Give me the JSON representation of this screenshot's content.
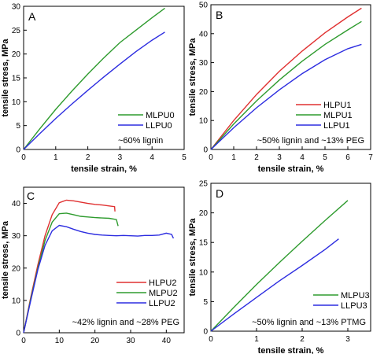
{
  "chart_data": [
    {
      "panel": "A",
      "type": "line",
      "xlabel": "tensile strain, %",
      "ylabel": "tensile stress, MPa",
      "xlim": [
        0,
        5
      ],
      "ylim": [
        0,
        30
      ],
      "xticks": [
        0,
        1,
        2,
        3,
        4,
        5
      ],
      "yticks": [
        0,
        5,
        10,
        15,
        20,
        25,
        30
      ],
      "legend_position": "bottom-right",
      "annotation": "~60% lignin",
      "series": [
        {
          "name": "MLPU0",
          "color": "#2e9b2e",
          "x": [
            0,
            0.5,
            1.0,
            1.5,
            2.0,
            2.5,
            3.0,
            3.5,
            4.0,
            4.4
          ],
          "y": [
            0,
            4.3,
            8.4,
            12.2,
            15.8,
            19.2,
            22.4,
            25.0,
            27.6,
            29.6
          ]
        },
        {
          "name": "LLPU0",
          "color": "#2d2de0",
          "x": [
            0,
            0.5,
            1.0,
            1.5,
            2.0,
            2.5,
            3.0,
            3.5,
            4.0,
            4.4
          ],
          "y": [
            0,
            3.3,
            6.5,
            9.5,
            12.4,
            15.2,
            17.9,
            20.5,
            22.9,
            24.6
          ]
        }
      ]
    },
    {
      "panel": "B",
      "type": "line",
      "xlabel": "tensile strain, %",
      "ylabel": "tensile stress, MPa",
      "xlim": [
        0,
        7
      ],
      "ylim": [
        0,
        50
      ],
      "xticks": [
        0,
        1,
        2,
        3,
        4,
        5,
        6,
        7
      ],
      "yticks": [
        0,
        10,
        20,
        30,
        40,
        50
      ],
      "legend_position": "bottom-right",
      "annotation": "~50% lignin and ~13% PEG",
      "series": [
        {
          "name": "HLPU1",
          "color": "#e03030",
          "x": [
            0,
            1,
            2,
            3,
            4,
            5,
            6,
            6.6
          ],
          "y": [
            0,
            10.0,
            19.0,
            27.0,
            34.0,
            40.3,
            45.8,
            48.8
          ]
        },
        {
          "name": "MLPU1",
          "color": "#2e9b2e",
          "x": [
            0,
            1,
            2,
            3,
            4,
            5,
            6,
            6.6
          ],
          "y": [
            0,
            8.8,
            16.8,
            24.0,
            30.5,
            36.3,
            41.3,
            44.2
          ]
        },
        {
          "name": "LLPU1",
          "color": "#2d2de0",
          "x": [
            0,
            1,
            2,
            3,
            4,
            5,
            6,
            6.6
          ],
          "y": [
            0,
            7.5,
            14.4,
            20.6,
            26.2,
            31.0,
            34.8,
            36.3
          ]
        }
      ]
    },
    {
      "panel": "C",
      "type": "line",
      "xlabel": "",
      "ylabel": "tensile stress, MPa",
      "xlim": [
        0,
        45
      ],
      "ylim": [
        0,
        45
      ],
      "xticks": [
        0,
        10,
        20,
        30,
        40
      ],
      "yticks": [
        0,
        10,
        20,
        30,
        40
      ],
      "legend_position": "bottom-right",
      "annotation": "~42% lignin and ~28% PEG",
      "series": [
        {
          "name": "HLPU2",
          "color": "#e03030",
          "x": [
            0,
            2,
            4,
            6,
            8,
            10,
            12,
            14,
            16,
            18,
            20,
            22,
            24,
            25.5,
            25.6
          ],
          "y": [
            0,
            11.0,
            21.0,
            30.0,
            36.5,
            40.2,
            41.0,
            40.8,
            40.4,
            40.0,
            39.7,
            39.5,
            39.2,
            39.0,
            37.5
          ]
        },
        {
          "name": "MLPU2",
          "color": "#2e9b2e",
          "x": [
            0,
            2,
            4,
            6,
            8,
            10,
            12,
            14,
            16,
            18,
            20,
            22,
            24,
            26,
            26.5
          ],
          "y": [
            0,
            10.5,
            20.0,
            28.5,
            34.2,
            36.8,
            37.0,
            36.5,
            36.0,
            35.8,
            35.6,
            35.5,
            35.4,
            35.0,
            33.0
          ]
        },
        {
          "name": "LLPU2",
          "color": "#2d2de0",
          "x": [
            0,
            2,
            4,
            6,
            8,
            10,
            12,
            14,
            16,
            18,
            20,
            22,
            24,
            26,
            28,
            30,
            32,
            34,
            36,
            38,
            40,
            41.5,
            42
          ],
          "y": [
            0,
            10.0,
            19.5,
            27.0,
            31.5,
            33.2,
            32.8,
            32.0,
            31.3,
            30.8,
            30.4,
            30.2,
            30.1,
            30.0,
            30.1,
            30.0,
            29.9,
            30.1,
            30.1,
            30.2,
            30.8,
            30.4,
            29.2
          ]
        }
      ]
    },
    {
      "panel": "D",
      "type": "line",
      "xlabel": "tensile strain, %",
      "ylabel": "tensile stress, MPa",
      "xlim": [
        0,
        3.5
      ],
      "ylim": [
        0,
        25
      ],
      "xticks": [
        0,
        1,
        2,
        3
      ],
      "yticks": [
        0,
        5,
        10,
        15,
        20,
        25
      ],
      "legend_position": "bottom-right",
      "annotation": "~50% lignin and ~13% PTMG",
      "series": [
        {
          "name": "MLPU3",
          "color": "#2e9b2e",
          "x": [
            0,
            0.5,
            1.0,
            1.5,
            2.0,
            2.5,
            3.0
          ],
          "y": [
            0,
            4.0,
            7.9,
            11.6,
            15.2,
            18.7,
            22.1
          ]
        },
        {
          "name": "LLPU3",
          "color": "#2d2de0",
          "x": [
            0,
            0.5,
            1.0,
            1.5,
            2.0,
            2.5,
            2.8
          ],
          "y": [
            0,
            2.9,
            5.7,
            8.5,
            11.1,
            13.8,
            15.6
          ]
        }
      ]
    }
  ]
}
